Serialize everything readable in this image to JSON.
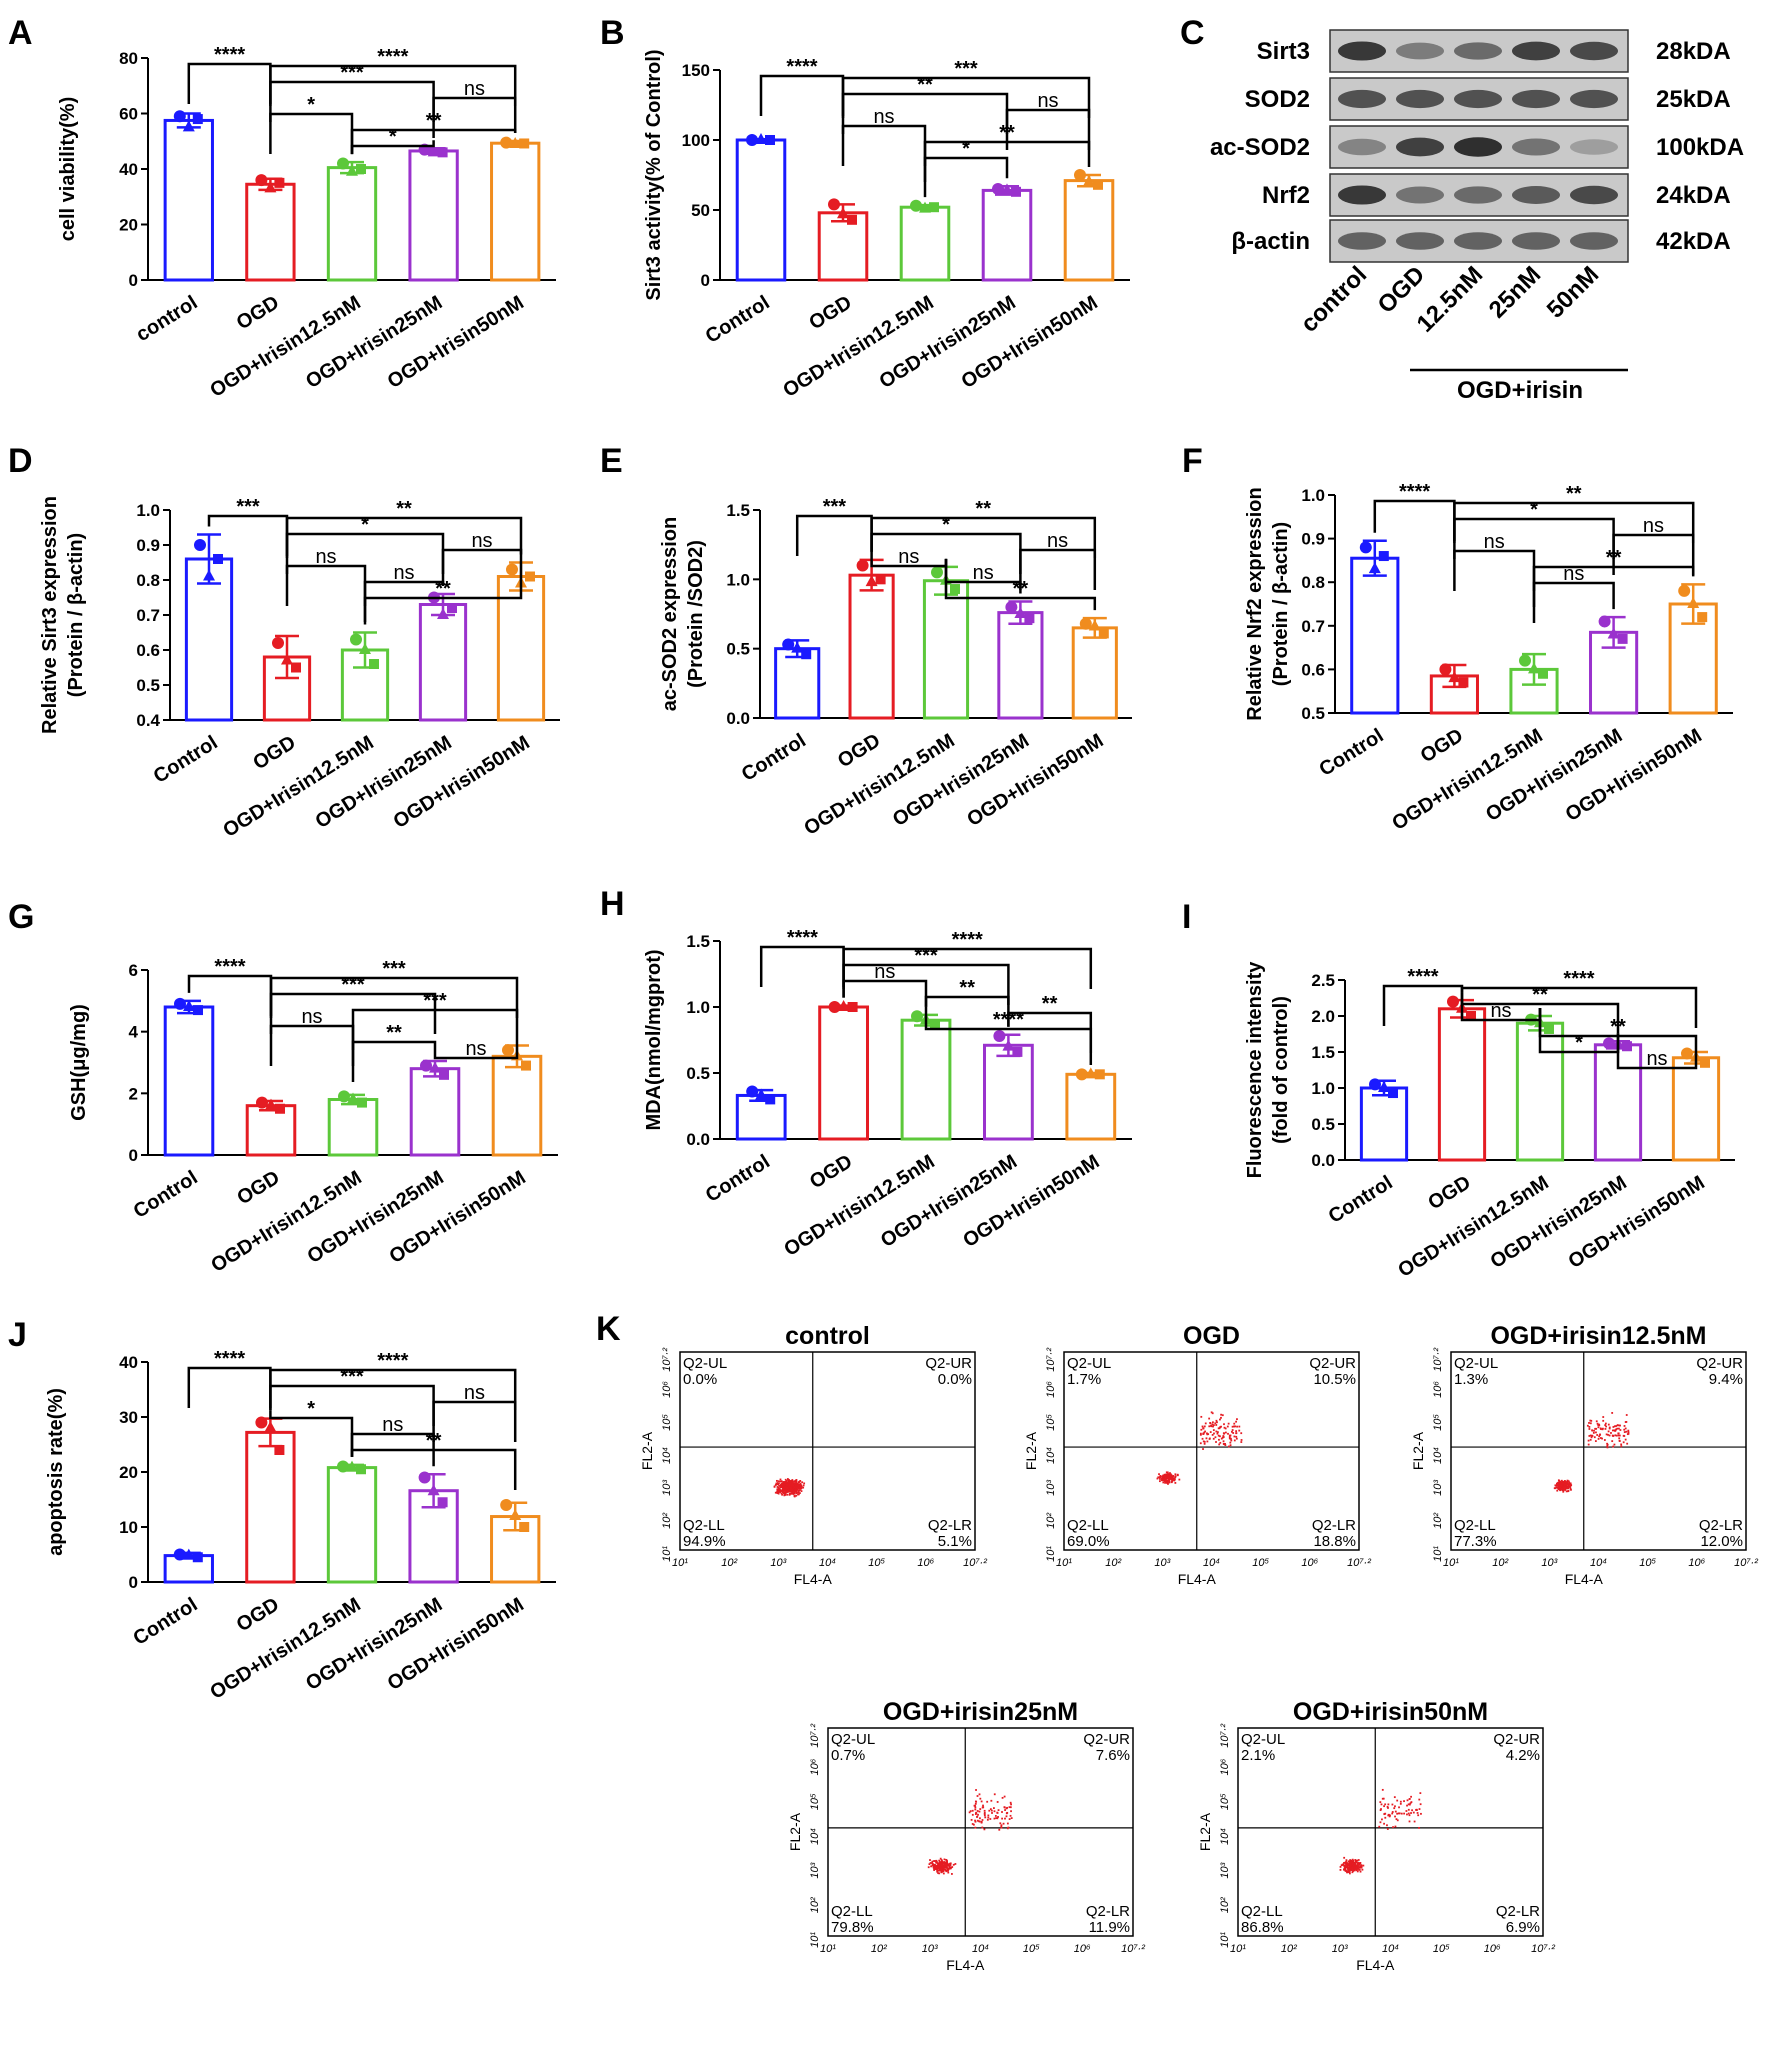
{
  "colors": {
    "control": "#1a1aff",
    "ogd": "#e51c23",
    "i12": "#5cc83a",
    "i25": "#9a32cd",
    "i50": "#f08c1e",
    "dots": "#e51c23"
  },
  "icon": "",
  "chart_data": [
    {
      "id": "A",
      "type": "bar",
      "panel_label": "A",
      "ylabel": "cell viability(%)",
      "ylim": [
        0,
        80
      ],
      "yticks": [
        0,
        20,
        40,
        60,
        80
      ],
      "ytick_fmt": 0,
      "categories": [
        "control",
        "OGD",
        "OGD+Irisin12.5nM",
        "OGD+Irisin25nM",
        "OGD+Irisin50nM"
      ],
      "values": [
        57.5,
        34.5,
        40.5,
        46.5,
        49.3
      ],
      "errors": [
        2.5,
        2.0,
        2.0,
        1.0,
        0.8
      ],
      "points": [
        [
          59,
          58,
          55
        ],
        [
          36,
          35,
          33
        ],
        [
          42,
          40,
          39
        ],
        [
          47,
          46,
          46
        ],
        [
          49.5,
          49.2,
          49
        ]
      ],
      "sig": [
        {
          "a": 0,
          "b": 1,
          "label": "****"
        },
        {
          "a": 1,
          "b": 4,
          "label": "****"
        },
        {
          "a": 1,
          "b": 3,
          "label": "***"
        },
        {
          "a": 3,
          "b": 4,
          "label": "ns"
        },
        {
          "a": 1,
          "b": 2,
          "label": "*"
        },
        {
          "a": 2,
          "b": 4,
          "label": "**"
        },
        {
          "a": 2,
          "b": 3,
          "label": "*"
        }
      ]
    },
    {
      "id": "B",
      "type": "bar",
      "panel_label": "B",
      "ylabel": "Sirt3 activity(% of Control)",
      "ylim": [
        0,
        150
      ],
      "yticks": [
        0,
        50,
        100,
        150
      ],
      "ytick_fmt": 0,
      "categories": [
        "Control",
        "OGD",
        "OGD+Irisin12.5nM",
        "OGD+Irisin25nM",
        "OGD+Irisin50nM"
      ],
      "values": [
        100,
        48,
        52,
        64,
        71
      ],
      "errors": [
        0.5,
        6,
        1.5,
        3,
        4
      ],
      "points": [
        [
          100,
          100,
          100
        ],
        [
          54,
          43,
          47
        ],
        [
          53,
          52,
          51
        ],
        [
          65,
          63,
          64
        ],
        [
          75,
          68,
          70
        ]
      ],
      "sig": [
        {
          "a": 0,
          "b": 1,
          "label": "****"
        },
        {
          "a": 1,
          "b": 4,
          "label": "***"
        },
        {
          "a": 1,
          "b": 3,
          "label": "**"
        },
        {
          "a": 3,
          "b": 4,
          "label": "ns"
        },
        {
          "a": 1,
          "b": 2,
          "label": "ns"
        },
        {
          "a": 2,
          "b": 4,
          "label": "**"
        },
        {
          "a": 2,
          "b": 3,
          "label": "*"
        }
      ]
    },
    {
      "id": "D",
      "type": "bar",
      "panel_label": "D",
      "ylabel": "Relative Sirt3 expression",
      "ylabel2": "(Protein / β-actin)",
      "ylim": [
        0.4,
        1.0
      ],
      "yticks": [
        0.4,
        0.5,
        0.6,
        0.7,
        0.8,
        0.9,
        1.0
      ],
      "ytick_fmt": 1,
      "categories": [
        "Control",
        "OGD",
        "OGD+Irisin12.5nM",
        "OGD+Irisin25nM",
        "OGD+Irisin50nM"
      ],
      "values": [
        0.86,
        0.58,
        0.6,
        0.73,
        0.81
      ],
      "errors": [
        0.07,
        0.06,
        0.05,
        0.03,
        0.04
      ],
      "points": [
        [
          0.9,
          0.86,
          0.81
        ],
        [
          0.62,
          0.55,
          0.57
        ],
        [
          0.63,
          0.56,
          0.6
        ],
        [
          0.75,
          0.72,
          0.7
        ],
        [
          0.83,
          0.81,
          0.79
        ]
      ],
      "sig": [
        {
          "a": 0,
          "b": 1,
          "label": "***"
        },
        {
          "a": 1,
          "b": 4,
          "label": "**"
        },
        {
          "a": 1,
          "b": 3,
          "label": "*"
        },
        {
          "a": 3,
          "b": 4,
          "label": "ns"
        },
        {
          "a": 1,
          "b": 2,
          "label": "ns"
        },
        {
          "a": 2,
          "b": 3,
          "label": "ns"
        },
        {
          "a": 2,
          "b": 4,
          "label": "**"
        }
      ]
    },
    {
      "id": "E",
      "type": "bar",
      "panel_label": "E",
      "ylabel": "ac-SOD2 expression",
      "ylabel2": "(Protein /SOD2)",
      "ylim": [
        0,
        1.5
      ],
      "yticks": [
        0.0,
        0.5,
        1.0,
        1.5
      ],
      "ytick_fmt": 1,
      "categories": [
        "Control",
        "OGD",
        "OGD+Irisin12.5nM",
        "OGD+Irisin25nM",
        "OGD+Irisin50nM"
      ],
      "values": [
        0.5,
        1.03,
        0.99,
        0.76,
        0.65
      ],
      "errors": [
        0.06,
        0.11,
        0.1,
        0.08,
        0.07
      ],
      "points": [
        [
          0.53,
          0.46,
          0.5
        ],
        [
          1.1,
          1.0,
          0.98
        ],
        [
          1.05,
          0.93,
          0.99
        ],
        [
          0.8,
          0.72,
          0.75
        ],
        [
          0.68,
          0.61,
          0.66
        ]
      ],
      "sig": [
        {
          "a": 0,
          "b": 1,
          "label": "***"
        },
        {
          "a": 1,
          "b": 4,
          "label": "**"
        },
        {
          "a": 1,
          "b": 3,
          "label": "*"
        },
        {
          "a": 3,
          "b": 4,
          "label": "ns"
        },
        {
          "a": 1,
          "b": 2,
          "label": "ns"
        },
        {
          "a": 2,
          "b": 3,
          "label": "ns"
        },
        {
          "a": 2,
          "b": 4,
          "label": "**"
        }
      ]
    },
    {
      "id": "F",
      "type": "bar",
      "panel_label": "F",
      "ylabel": "Relative Nrf2 expression",
      "ylabel2": "(Protein / β-actin)",
      "ylim": [
        0.5,
        1.0
      ],
      "yticks": [
        0.5,
        0.6,
        0.7,
        0.8,
        0.9,
        1.0
      ],
      "ytick_fmt": 1,
      "categories": [
        "Control",
        "OGD",
        "OGD+Irisin12.5nM",
        "OGD+Irisin25nM",
        "OGD+Irisin50nM"
      ],
      "values": [
        0.855,
        0.585,
        0.6,
        0.685,
        0.75
      ],
      "errors": [
        0.04,
        0.025,
        0.035,
        0.035,
        0.045
      ],
      "points": [
        [
          0.88,
          0.86,
          0.83
        ],
        [
          0.6,
          0.57,
          0.58
        ],
        [
          0.62,
          0.59,
          0.6
        ],
        [
          0.71,
          0.67,
          0.68
        ],
        [
          0.78,
          0.72,
          0.75
        ]
      ],
      "sig": [
        {
          "a": 0,
          "b": 1,
          "label": "****"
        },
        {
          "a": 1,
          "b": 4,
          "label": "**"
        },
        {
          "a": 1,
          "b": 3,
          "label": "*"
        },
        {
          "a": 3,
          "b": 4,
          "label": "ns"
        },
        {
          "a": 1,
          "b": 2,
          "label": "ns"
        },
        {
          "a": 2,
          "b": 4,
          "label": "**"
        },
        {
          "a": 2,
          "b": 3,
          "label": "ns"
        }
      ]
    },
    {
      "id": "G",
      "type": "bar",
      "panel_label": "G",
      "ylabel": "GSH(μg/mg)",
      "ylim": [
        0,
        6
      ],
      "yticks": [
        0,
        2,
        4,
        6
      ],
      "ytick_fmt": 0,
      "categories": [
        "Control",
        "OGD",
        "OGD+Irisin12.5nM",
        "OGD+Irisin25nM",
        "OGD+Irisin50nM"
      ],
      "values": [
        4.8,
        1.6,
        1.8,
        2.8,
        3.2
      ],
      "errors": [
        0.2,
        0.15,
        0.15,
        0.25,
        0.35
      ],
      "points": [
        [
          4.9,
          4.7,
          4.8
        ],
        [
          1.7,
          1.5,
          1.6
        ],
        [
          1.9,
          1.7,
          1.8
        ],
        [
          2.9,
          2.6,
          2.8
        ],
        [
          3.4,
          2.9,
          3.2
        ]
      ],
      "sig": [
        {
          "a": 0,
          "b": 1,
          "label": "****"
        },
        {
          "a": 1,
          "b": 4,
          "label": "***"
        },
        {
          "a": 1,
          "b": 3,
          "label": "***"
        },
        {
          "a": 2,
          "b": 4,
          "label": "***"
        },
        {
          "a": 1,
          "b": 2,
          "label": "ns"
        },
        {
          "a": 2,
          "b": 3,
          "label": "**"
        },
        {
          "a": 3,
          "b": 4,
          "label": "ns"
        }
      ]
    },
    {
      "id": "H",
      "type": "bar",
      "panel_label": "H",
      "ylabel": "MDA(nmol/mgprot)",
      "ylim": [
        0,
        1.5
      ],
      "yticks": [
        0.0,
        0.5,
        1.0,
        1.5
      ],
      "ytick_fmt": 1,
      "categories": [
        "Control",
        "OGD",
        "OGD+Irisin12.5nM",
        "OGD+Irisin25nM",
        "OGD+Irisin50nM"
      ],
      "values": [
        0.33,
        1.0,
        0.9,
        0.71,
        0.49
      ],
      "errors": [
        0.04,
        0.01,
        0.04,
        0.08,
        0.01
      ],
      "points": [
        [
          0.36,
          0.3,
          0.33
        ],
        [
          1.0,
          1.0,
          1.0
        ],
        [
          0.93,
          0.87,
          0.9
        ],
        [
          0.78,
          0.66,
          0.7
        ],
        [
          0.49,
          0.49,
          0.49
        ]
      ],
      "sig": [
        {
          "a": 0,
          "b": 1,
          "label": "****"
        },
        {
          "a": 1,
          "b": 4,
          "label": "****"
        },
        {
          "a": 1,
          "b": 3,
          "label": "***"
        },
        {
          "a": 1,
          "b": 2,
          "label": "ns"
        },
        {
          "a": 2,
          "b": 3,
          "label": "**"
        },
        {
          "a": 3,
          "b": 4,
          "label": "**"
        },
        {
          "a": 2,
          "b": 4,
          "label": "****"
        }
      ]
    },
    {
      "id": "I",
      "type": "bar",
      "panel_label": "I",
      "ylabel": "Fluorescence intensity",
      "ylabel2": "(fold of control)",
      "ylim": [
        0,
        2.5
      ],
      "yticks": [
        0.0,
        0.5,
        1.0,
        1.5,
        2.0,
        2.5
      ],
      "ytick_fmt": 1,
      "categories": [
        "Control",
        "OGD",
        "OGD+Irisin12.5nM",
        "OGD+Irisin25nM",
        "OGD+Irisin50nM"
      ],
      "values": [
        1.0,
        2.1,
        1.9,
        1.6,
        1.42
      ],
      "errors": [
        0.1,
        0.12,
        0.1,
        0.05,
        0.08
      ],
      "points": [
        [
          1.05,
          0.93,
          1.0
        ],
        [
          2.2,
          2.0,
          2.1
        ],
        [
          1.95,
          1.82,
          1.9
        ],
        [
          1.62,
          1.58,
          1.6
        ],
        [
          1.48,
          1.35,
          1.42
        ]
      ],
      "sig": [
        {
          "a": 0,
          "b": 1,
          "label": "****"
        },
        {
          "a": 1,
          "b": 4,
          "label": "****"
        },
        {
          "a": 1,
          "b": 3,
          "label": "**"
        },
        {
          "a": 1,
          "b": 2,
          "label": "ns"
        },
        {
          "a": 2,
          "b": 4,
          "label": "**"
        },
        {
          "a": 2,
          "b": 3,
          "label": "*"
        },
        {
          "a": 3,
          "b": 4,
          "label": "ns"
        }
      ]
    },
    {
      "id": "J",
      "type": "bar",
      "panel_label": "J",
      "ylabel": "apoptosis rate(%)",
      "ylim": [
        0,
        40
      ],
      "yticks": [
        0,
        10,
        20,
        30,
        40
      ],
      "ytick_fmt": 0,
      "categories": [
        "Control",
        "OGD",
        "OGD+Irisin12.5nM",
        "OGD+Irisin25nM",
        "OGD+Irisin50nM"
      ],
      "values": [
        4.8,
        27.2,
        20.8,
        16.6,
        11.9
      ],
      "errors": [
        0.5,
        2.5,
        0.5,
        3.0,
        2.5
      ],
      "points": [
        [
          5,
          4.5,
          4.8
        ],
        [
          29,
          24,
          28
        ],
        [
          21,
          20.5,
          20.8
        ],
        [
          19,
          14.5,
          16.5
        ],
        [
          14,
          10,
          12
        ]
      ],
      "sig": [
        {
          "a": 0,
          "b": 1,
          "label": "****"
        },
        {
          "a": 1,
          "b": 4,
          "label": "****"
        },
        {
          "a": 1,
          "b": 3,
          "label": "***"
        },
        {
          "a": 3,
          "b": 4,
          "label": "ns"
        },
        {
          "a": 1,
          "b": 2,
          "label": "*"
        },
        {
          "a": 2,
          "b": 3,
          "label": "ns"
        },
        {
          "a": 2,
          "b": 4,
          "label": "**"
        }
      ]
    }
  ],
  "western": {
    "panel_label": "C",
    "rows": [
      {
        "name": "Sirt3",
        "kda": "28kDA",
        "intensity": [
          0.85,
          0.45,
          0.55,
          0.8,
          0.75
        ]
      },
      {
        "name": "SOD2",
        "kda": "25kDA",
        "intensity": [
          0.7,
          0.7,
          0.7,
          0.7,
          0.7
        ]
      },
      {
        "name": "ac-SOD2",
        "kda": "100kDA",
        "intensity": [
          0.4,
          0.8,
          0.9,
          0.5,
          0.25
        ]
      },
      {
        "name": "Nrf2",
        "kda": "24kDA",
        "intensity": [
          0.85,
          0.5,
          0.55,
          0.65,
          0.75
        ]
      },
      {
        "name": "β-actin",
        "kda": "42kDA",
        "intensity": [
          0.6,
          0.6,
          0.6,
          0.6,
          0.6
        ]
      }
    ],
    "lanes": [
      "control",
      "OGD",
      "12.5nM",
      "25nM",
      "50nM"
    ],
    "group_label": "OGD+irisin"
  },
  "flow": {
    "panel_label": "K",
    "xlabel": "FL4-A",
    "ylabel": "FL2-A",
    "ticks": [
      "10¹",
      "10²",
      "10³",
      "10⁴",
      "10⁵",
      "10⁶",
      "10⁷·²"
    ],
    "quadrant_names": [
      "Q2-UL",
      "Q2-UR",
      "Q2-LL",
      "Q2-LR"
    ],
    "plots": [
      {
        "title": "control",
        "ul": "0.0%",
        "ur": "0.0%",
        "ll": "94.9%",
        "lr": "5.1%"
      },
      {
        "title": "OGD",
        "ul": "1.7%",
        "ur": "10.5%",
        "ll": "69.0%",
        "lr": "18.8%"
      },
      {
        "title": "OGD+irisin12.5nM",
        "ul": "1.3%",
        "ur": "9.4%",
        "ll": "77.3%",
        "lr": "12.0%"
      },
      {
        "title": "OGD+irisin25nM",
        "ul": "0.7%",
        "ur": "7.6%",
        "ll": "79.8%",
        "lr": "11.9%"
      },
      {
        "title": "OGD+irisin50nM",
        "ul": "2.1%",
        "ur": "4.2%",
        "ll": "86.8%",
        "lr": "6.9%"
      }
    ]
  }
}
